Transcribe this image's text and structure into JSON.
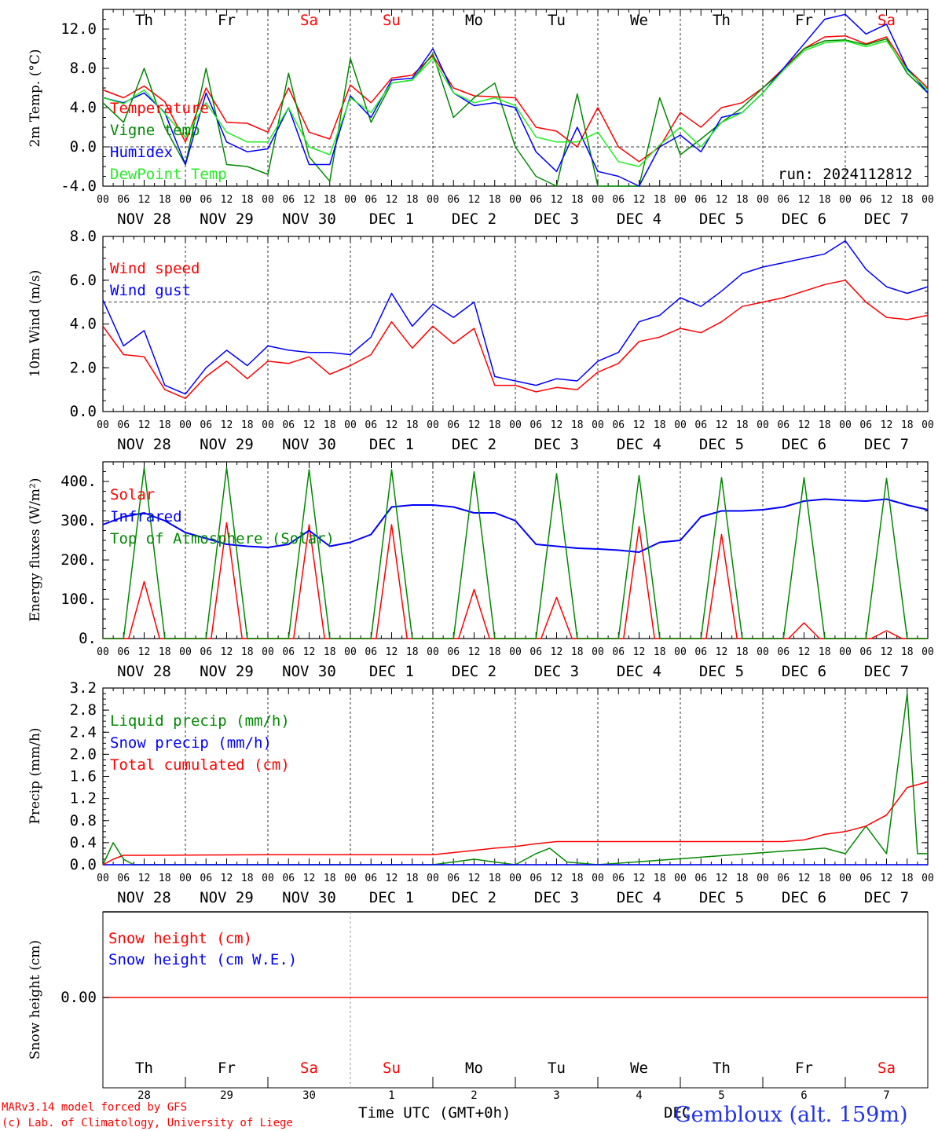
{
  "colors": {
    "red": "#ff0000",
    "green": "#008800",
    "blue": "#0000ff",
    "lightgreen": "#22ee22",
    "grid": "#000000"
  },
  "days": {
    "weekdays": [
      "Th",
      "Fr",
      "Sa",
      "Su",
      "Mo",
      "Tu",
      "We",
      "Th",
      "Fr",
      "Sa"
    ],
    "weekend_flags": [
      false,
      false,
      true,
      true,
      false,
      false,
      false,
      false,
      false,
      true
    ],
    "date_labels": [
      "NOV 28",
      "NOV 29",
      "NOV 30",
      "DEC  1",
      "DEC  2",
      "DEC  3",
      "DEC  4",
      "DEC  5",
      "DEC  6",
      "DEC  7"
    ],
    "day_numbers": [
      "28",
      "29",
      "30",
      "1",
      "2",
      "3",
      "4",
      "5",
      "6",
      "7"
    ],
    "hour_ticks": [
      "00",
      "06",
      "12",
      "18"
    ],
    "hour_end": "00"
  },
  "chart_data": [
    {
      "type": "line",
      "ylabel": "2m Temp. (°C)",
      "ylim": [
        -4,
        14
      ],
      "yticks": [
        "12.0",
        "8.0",
        "4.0",
        "0.0",
        "-4.0"
      ],
      "run_label": "run: 2024112812",
      "x_unit": "hours since Nov 28 00 UTC",
      "series": [
        {
          "name": "Temperature",
          "color": "#ff0000",
          "x": [
            0,
            6,
            12,
            18,
            24,
            30,
            36,
            42,
            48,
            54,
            60,
            66,
            72,
            78,
            84,
            90,
            96,
            102,
            108,
            114,
            120,
            126,
            132,
            138,
            144,
            150,
            156,
            162,
            168,
            174,
            180,
            186,
            192,
            198,
            204,
            210,
            216,
            222,
            228,
            234,
            240
          ],
          "y": [
            5.8,
            5,
            6.2,
            4.6,
            0.5,
            6,
            2.5,
            2.4,
            1.5,
            6,
            1.5,
            0.8,
            6.3,
            4.5,
            7,
            7.3,
            9.3,
            6,
            5.2,
            5.1,
            5,
            2,
            1.6,
            0,
            4,
            0,
            -1.5,
            0,
            3.5,
            2,
            4,
            4.5,
            6,
            8,
            10,
            11.2,
            11.3,
            10.5,
            11.2,
            8,
            6
          ]
        },
        {
          "name": "Vigne temp",
          "color": "#008800",
          "x": [
            0,
            6,
            12,
            18,
            24,
            30,
            36,
            42,
            48,
            54,
            60,
            66,
            72,
            78,
            84,
            90,
            96,
            102,
            108,
            114,
            120,
            126,
            132,
            138,
            144,
            150,
            156,
            162,
            168,
            174,
            180,
            186,
            192,
            198,
            204,
            210,
            216,
            222,
            228,
            234,
            240
          ],
          "y": [
            4.5,
            2.5,
            8,
            2,
            -1.8,
            8,
            -1.8,
            -2,
            -2.8,
            7.5,
            -1,
            -3.5,
            9,
            2.5,
            6.5,
            6.8,
            9.5,
            3,
            5,
            6.5,
            0,
            -3,
            -4.2,
            5.4,
            -4,
            -4.5,
            -4.5,
            5,
            -0.8,
            0.8,
            2.5,
            4,
            6,
            7.8,
            10,
            10.8,
            10.9,
            10.4,
            11,
            7.5,
            5.5
          ]
        },
        {
          "name": "Humidex",
          "color": "#0000ff",
          "x": [
            0,
            6,
            12,
            18,
            24,
            30,
            36,
            42,
            48,
            54,
            60,
            66,
            72,
            78,
            84,
            90,
            96,
            102,
            108,
            114,
            120,
            126,
            132,
            138,
            144,
            150,
            156,
            162,
            168,
            174,
            180,
            186,
            192,
            198,
            204,
            210,
            216,
            222,
            228,
            234,
            240
          ],
          "y": [
            5,
            4.5,
            5.5,
            3.5,
            -1.8,
            5.5,
            0.5,
            -0.5,
            -0.2,
            4,
            -1.8,
            -1.8,
            5.2,
            3,
            6.8,
            7,
            10,
            5.5,
            4.2,
            4.5,
            4,
            -0.5,
            -2.5,
            2,
            -2.5,
            -3,
            -4,
            0,
            1.2,
            -0.5,
            3,
            3.5,
            5.5,
            8,
            10.5,
            13,
            13.5,
            11.5,
            12.5,
            8,
            5.5
          ]
        },
        {
          "name": "DewPoint Temp",
          "color": "#22ee22",
          "x": [
            0,
            6,
            12,
            18,
            24,
            30,
            36,
            42,
            48,
            54,
            60,
            66,
            72,
            78,
            84,
            90,
            96,
            102,
            108,
            114,
            120,
            126,
            132,
            138,
            144,
            150,
            156,
            162,
            168,
            174,
            180,
            186,
            192,
            198,
            204,
            210,
            216,
            222,
            228,
            234,
            240
          ],
          "y": [
            5,
            4.4,
            5.8,
            3.4,
            1,
            4.5,
            1.5,
            0.5,
            0.5,
            4,
            0,
            -0.8,
            5,
            3.5,
            6.5,
            6.8,
            9,
            5.5,
            4.5,
            5,
            4.2,
            1,
            0.5,
            0.5,
            1.5,
            -1.5,
            -2,
            0.2,
            2,
            0,
            2.5,
            3.5,
            5.5,
            7.8,
            9.8,
            10.6,
            10.8,
            10.2,
            10.8,
            7.8,
            5.8
          ]
        }
      ]
    },
    {
      "type": "line",
      "ylabel": "10m Wind (m/s)",
      "ylim": [
        0,
        8
      ],
      "yticks": [
        "8.0",
        "6.0",
        "4.0",
        "2.0",
        "0.0"
      ],
      "series": [
        {
          "name": "Wind speed",
          "color": "#ff0000",
          "x": [
            0,
            6,
            12,
            18,
            24,
            30,
            36,
            42,
            48,
            54,
            60,
            66,
            72,
            78,
            84,
            90,
            96,
            102,
            108,
            114,
            120,
            126,
            132,
            138,
            144,
            150,
            156,
            162,
            168,
            174,
            180,
            186,
            192,
            198,
            204,
            210,
            216,
            222,
            228,
            234,
            240
          ],
          "y": [
            3.9,
            2.6,
            2.5,
            1,
            0.6,
            1.6,
            2.3,
            1.5,
            2.3,
            2.2,
            2.5,
            1.7,
            2.1,
            2.6,
            4.1,
            2.9,
            3.9,
            3.1,
            3.8,
            1.2,
            1.2,
            0.9,
            1.1,
            1,
            1.8,
            2.2,
            3.2,
            3.4,
            3.8,
            3.6,
            4.1,
            4.8,
            5,
            5.2,
            5.5,
            5.8,
            6,
            5,
            4.3,
            4.2,
            4.4
          ]
        },
        {
          "name": "Wind gust",
          "color": "#0000ff",
          "x": [
            0,
            6,
            12,
            18,
            24,
            30,
            36,
            42,
            48,
            54,
            60,
            66,
            72,
            78,
            84,
            90,
            96,
            102,
            108,
            114,
            120,
            126,
            132,
            138,
            144,
            150,
            156,
            162,
            168,
            174,
            180,
            186,
            192,
            198,
            204,
            210,
            216,
            222,
            228,
            234,
            240
          ],
          "y": [
            5.1,
            3,
            3.7,
            1.2,
            0.8,
            2,
            2.8,
            2.1,
            3,
            2.8,
            2.7,
            2.7,
            2.6,
            3.4,
            5.4,
            3.9,
            4.9,
            4.3,
            5,
            1.6,
            1.4,
            1.2,
            1.5,
            1.4,
            2.3,
            2.7,
            4.1,
            4.4,
            5.2,
            4.8,
            5.5,
            6.3,
            6.6,
            6.8,
            7,
            7.2,
            7.8,
            6.5,
            5.7,
            5.4,
            5.7
          ]
        }
      ],
      "reference_line": 5
    },
    {
      "type": "line",
      "ylabel": "Energy fluxes (W/m²)",
      "ylim": [
        0,
        450
      ],
      "yticks": [
        "400.",
        "300.",
        "200.",
        "100.",
        "0."
      ],
      "series": [
        {
          "name": "Solar",
          "color": "#ff0000",
          "daily_peaks": [
            145,
            295,
            290,
            290,
            125,
            105,
            285,
            265,
            40,
            20
          ]
        },
        {
          "name": "Infrared",
          "color": "#0000ff",
          "x": [
            0,
            6,
            12,
            18,
            24,
            30,
            36,
            42,
            48,
            54,
            60,
            66,
            72,
            78,
            84,
            90,
            96,
            102,
            108,
            114,
            120,
            126,
            132,
            138,
            144,
            150,
            156,
            162,
            168,
            174,
            180,
            186,
            192,
            198,
            204,
            210,
            216,
            222,
            228,
            234,
            240
          ],
          "y": [
            290,
            310,
            320,
            300,
            270,
            255,
            240,
            235,
            232,
            240,
            275,
            235,
            245,
            265,
            335,
            340,
            340,
            335,
            320,
            320,
            300,
            240,
            235,
            230,
            228,
            225,
            220,
            245,
            250,
            310,
            325,
            325,
            328,
            335,
            350,
            355,
            352,
            350,
            355,
            340,
            328
          ]
        },
        {
          "name": "Top of Atmosphere (Solar)",
          "color": "#008800",
          "daily_peaks": [
            435,
            435,
            430,
            430,
            425,
            420,
            415,
            410,
            410,
            408
          ]
        }
      ]
    },
    {
      "type": "line",
      "ylabel": "Precip (mm/h)",
      "ylim": [
        0,
        3.2
      ],
      "yticks": [
        "3.2",
        "2.8",
        "2.4",
        "2.0",
        "1.6",
        "1.2",
        "0.8",
        "0.4",
        "0.0"
      ],
      "series": [
        {
          "name": "Liquid precip (mm/h)",
          "color": "#008800",
          "x": [
            0,
            3,
            6,
            9,
            12,
            24,
            96,
            108,
            120,
            126,
            130,
            135,
            144,
            216,
            210,
            222,
            228,
            234,
            237,
            240
          ],
          "y": [
            0,
            0.4,
            0.1,
            0,
            0,
            0,
            0,
            0.1,
            0,
            0.2,
            0.3,
            0.05,
            0,
            0.2,
            0.3,
            0.7,
            0.2,
            3.1,
            0.2,
            0.2
          ]
        },
        {
          "name": "Snow precip (mm/h)",
          "color": "#0000ff",
          "x": [
            0,
            240
          ],
          "y": [
            0,
            0
          ]
        },
        {
          "name": "Total cumulated (cm)",
          "color": "#ff0000",
          "x": [
            0,
            3,
            6,
            12,
            48,
            96,
            102,
            108,
            114,
            120,
            126,
            132,
            138,
            144,
            168,
            192,
            198,
            204,
            210,
            216,
            222,
            228,
            234,
            240
          ],
          "y": [
            0,
            0.1,
            0.17,
            0.17,
            0.18,
            0.18,
            0.22,
            0.26,
            0.3,
            0.33,
            0.38,
            0.42,
            0.42,
            0.42,
            0.42,
            0.42,
            0.42,
            0.45,
            0.55,
            0.6,
            0.7,
            0.9,
            1.4,
            1.5
          ]
        }
      ]
    },
    {
      "type": "line",
      "ylabel": "Snow height (cm)",
      "yticks": [
        "0.00"
      ],
      "series": [
        {
          "name": "Snow height (cm)",
          "color": "#ff0000",
          "x": [
            0,
            240
          ],
          "y": [
            0,
            0
          ]
        },
        {
          "name": "Snow height (cm W.E.)",
          "color": "#0000ff",
          "x": [
            0,
            240
          ],
          "y": [
            0,
            0
          ]
        }
      ]
    }
  ],
  "footer": {
    "model_line": "MARv3.14 model forced by GFS",
    "copyright_line": "(c) Lab. of Climatology, University of Liege",
    "xlabel": "Time UTC (GMT+0h)",
    "month_label": "DEC",
    "station": "Gembloux (alt. 159m)"
  }
}
